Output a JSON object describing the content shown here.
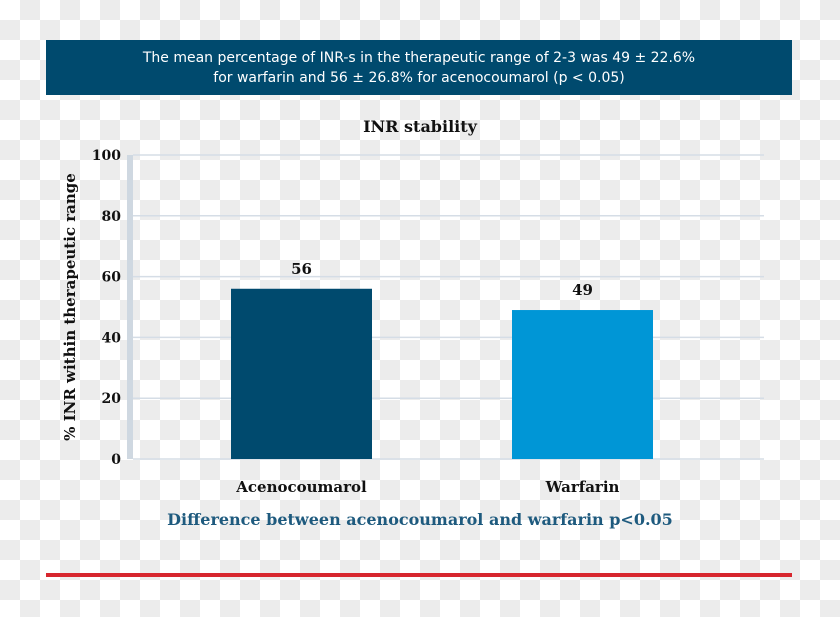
{
  "header": {
    "line1": "The mean percentage of INR-s in the therapeutic range of 2-3 was 49 ± 22.6%",
    "line2": "for warfarin and 56 ± 26.8% for acenocoumarol (p < 0.05)"
  },
  "footnote": "Difference between acenocoumarol and warfarin p<0.05",
  "chart_data": {
    "type": "bar",
    "title": "INR stability",
    "xlabel": "",
    "ylabel": "% INR within therapeutic range",
    "categories": [
      "Acenocoumarol",
      "Warfarin"
    ],
    "values": [
      56,
      49
    ],
    "data_labels": [
      "56",
      "49"
    ],
    "colors": [
      "#004a6e",
      "#0096d6"
    ],
    "ylim": [
      0,
      100
    ],
    "yticks": [
      0,
      20,
      40,
      60,
      80,
      100
    ],
    "ytick_labels": [
      "0",
      "20",
      "40",
      "60",
      "80",
      "100"
    ],
    "grid": true
  }
}
